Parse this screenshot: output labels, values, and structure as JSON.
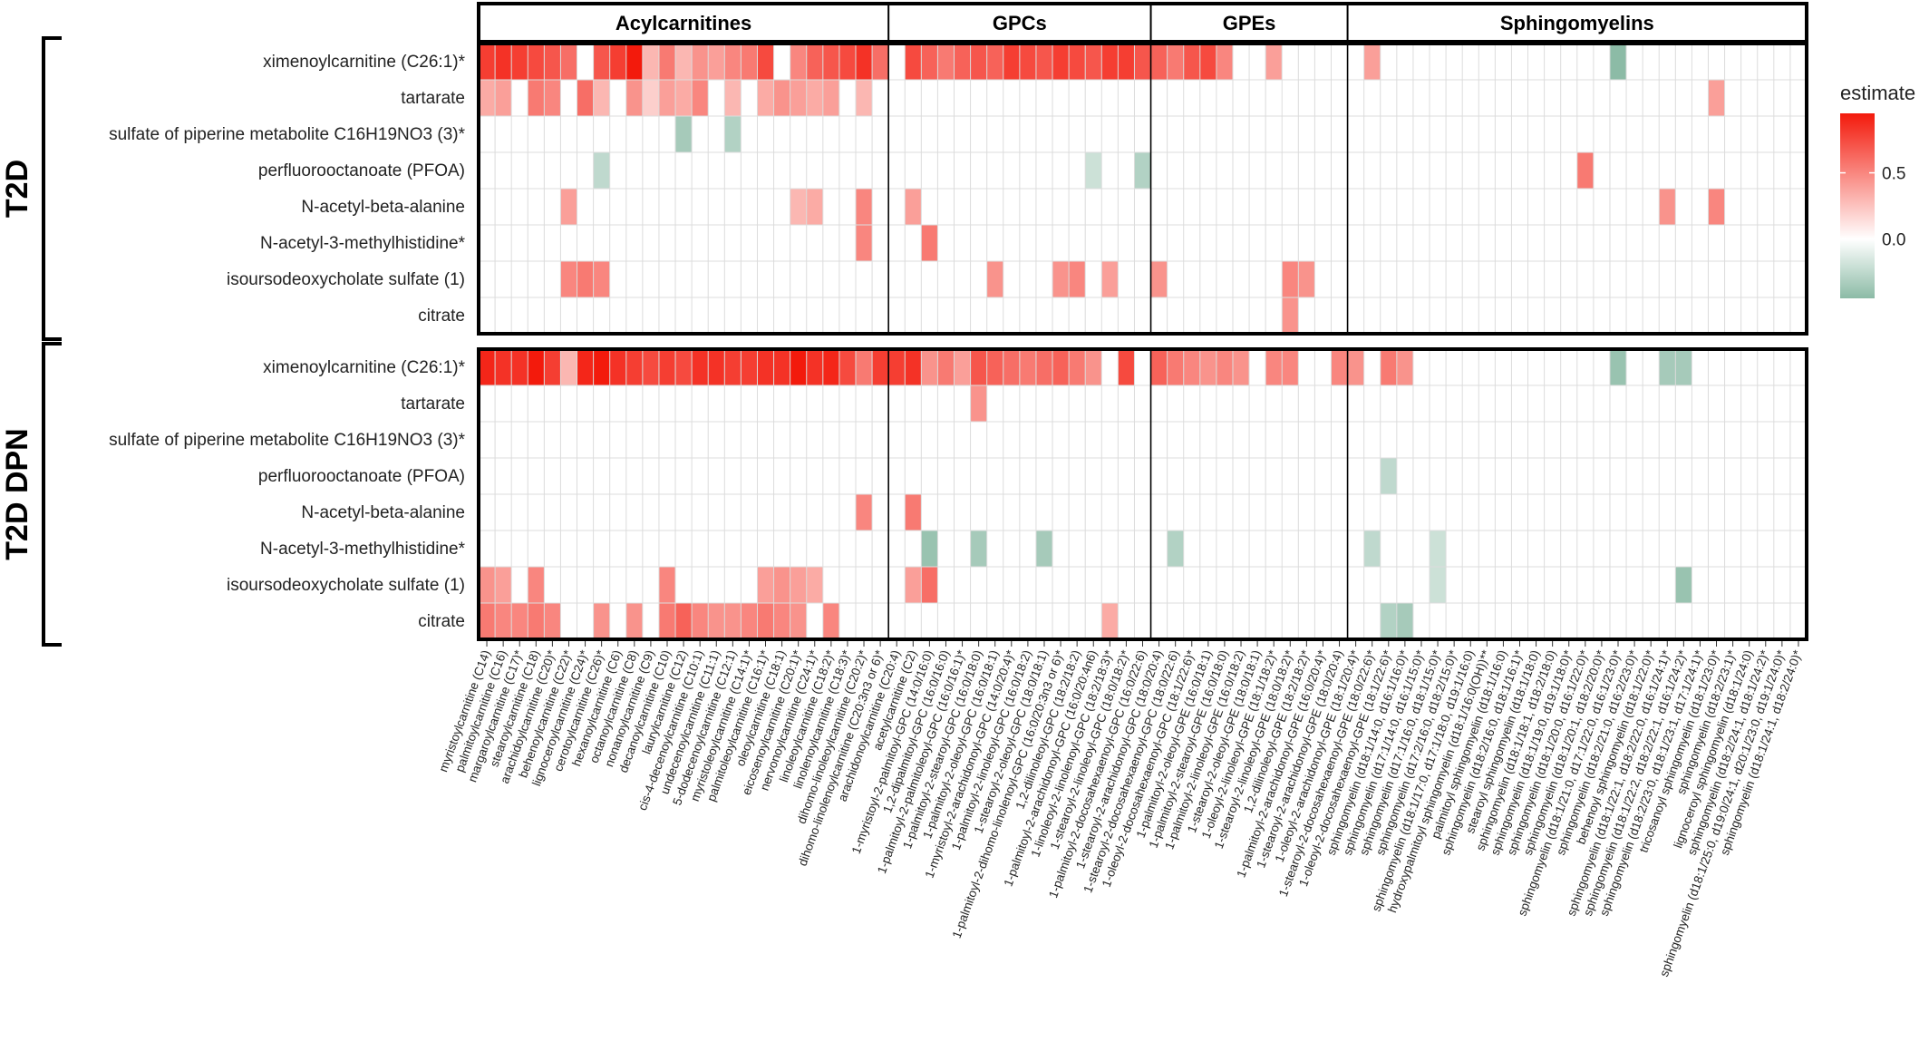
{
  "chart_data": {
    "type": "heatmap",
    "legend": {
      "title": "estimate",
      "ticks": [
        0.5,
        0.0
      ],
      "tick_labels": [
        "0.5",
        "0.0"
      ],
      "range": [
        -0.45,
        0.95
      ],
      "placement": "right"
    },
    "colors": {
      "high": "#f31a0c",
      "mid": "#ffffff",
      "low": "#8cbba6",
      "grid": "#dcdcdc",
      "frame": "#000000"
    },
    "groups": [
      {
        "name": "Acylcarnitines",
        "start": 0,
        "count": 25
      },
      {
        "name": "GPCs",
        "start": 25,
        "count": 16
      },
      {
        "name": "GPEs",
        "start": 41,
        "count": 12
      },
      {
        "name": "Sphingomyelins",
        "start": 53,
        "count": 28
      }
    ],
    "columns": [
      "myristoylcarnitine (C14)",
      "palmitoylcarnitine (C16)",
      "margaroylcarnitine (C17)*",
      "stearoylcarnitine (C18)",
      "arachidoylcarnitine (C20)*",
      "behenoylcarnitine (C22)*",
      "lignoceroylcarnitine (C24)*",
      "cerotoylcarnitine (C26)*",
      "hexanoylcarnitine (C6)",
      "octanoylcarnitine (C8)",
      "nonanoylcarnitine (C9)",
      "decanoylcarnitine (C10)",
      "laurylcarnitine (C12)",
      "cis-4-decenoylcarnitine (C10:1)",
      "undecenoylcarnitine (C11:1)",
      "5-dodecenoylcarnitine (C12:1)",
      "myristoleoylcarnitine (C14:1)*",
      "palmitoleoylcarnitine (C16:1)*",
      "oleoylcarnitine (C18:1)",
      "eicosenoylcarnitine (C20:1)*",
      "nervonoylcarnitine (C24:1)*",
      "linoleoylcarnitine (C18:2)*",
      "linolenoylcarnitine (C18:3)*",
      "dihomo-linoleoylcarnitine (C20:2)*",
      "dihomo-linolenoylcarnitine (C20:3n3 or 6)*",
      "arachidonoylcarnitine (C20:4)",
      "acetylcarnitine (C2)",
      "1-myristoyl-2-palmitoyl-GPC (14:0/16:0)",
      "1,2-dipalmitoyl-GPC (16:0/16:0)",
      "1-palmitoyl-2-palmitoleoyl-GPC (16:0/16:1)*",
      "1-palmitoyl-2-stearoyl-GPC (16:0/18:0)",
      "1-palmitoyl-2-oleoyl-GPC (16:0/18:1)",
      "1-myristoyl-2-arachidonoyl-GPC (14:0/20:4)*",
      "1-palmitoyl-2-linoleoyl-GPC (16:0/18:2)",
      "1-stearoyl-2-oleoyl-GPC (18:0/18:1)",
      "1-palmitoyl-2-dihomo-linolenoyl-GPC (16:0/20:3n3 or 6)*",
      "1,2-dilinoleoyl-GPC (18:2/18:2)",
      "1-palmitoyl-2-arachidonoyl-GPC (16:0/20:4n6)",
      "1-linoleoyl-2-linolenoyl-GPC (18:2/18:3)*",
      "1-stearoyl-2-linoleoyl-GPC (18:0/18:2)*",
      "1-palmitoyl-2-docosahexaenoyl-GPC (16:0/22:6)",
      "1-stearoyl-2-arachidonoyl-GPC (18:0/20:4)",
      "1-stearoyl-2-docosahexaenoyl-GPC (18:0/22:6)",
      "1-oleoyl-2-docosahexaenoyl-GPC (18:1/22:6)*",
      "1-palmitoyl-2-oleoyl-GPE (16:0/18:1)",
      "1-palmitoyl-2-stearoyl-GPE (16:0/18:0)",
      "1-palmitoyl-2-linoleoyl-GPE (16:0/18:2)",
      "1-stearoyl-2-oleoyl-GPE (18:0/18:1)",
      "1-oleoyl-2-linoleoyl-GPE (18:1/18:2)*",
      "1-stearoyl-2-linoleoyl-GPE (18:0/18:2)*",
      "1,2-dilinoleoyl-GPE (18:2/18:2)*",
      "1-palmitoyl-2-arachidonoyl-GPE (16:0/20:4)*",
      "1-stearoyl-2-arachidonoyl-GPE (18:0/20:4)",
      "1-oleoyl-2-arachidonoyl-GPE (18:1/20:4)*",
      "1-stearoyl-2-docosahexaenoyl-GPE (18:0/22:6)*",
      "1-oleoyl-2-docosahexaenoyl-GPE (18:1/22:6)*",
      "sphingomyelin (d18:1/14:0, d16:1/16:0)*",
      "sphingomyelin (d17:1/14:0, d16:1/15:0)*",
      "sphingomyelin (d17:1/16:0, d18:1/15:0)*",
      "sphingomyelin (d17:2/16:0, d18:2/15:0)*",
      "sphingomyelin (d18:1/17:0, d17:1/18:0, d19:1/16:0)",
      "hydroxypalmitoyl sphingomyelin (d18:1/16:0(OH))**",
      "palmitoyl sphingomyelin (d18:1/16:0)",
      "sphingomyelin (d18:2/16:0, d18:1/16:1)*",
      "stearoyl sphingomyelin (d18:1/18:0)",
      "sphingomyelin (d18:1/18:1, d18:2/18:0)",
      "sphingomyelin (d18:1/19:0, d19:1/18:0)*",
      "sphingomyelin (d18:1/20:0, d16:1/22:0)*",
      "sphingomyelin (d18:1/20:1, d18:2/20:0)*",
      "sphingomyelin (d18:1/21:0, d17:1/22:0, d16:1/23:0)*",
      "sphingomyelin (d18:2/21:0, d16:2/23:0)*",
      "behenoyl sphingomyelin (d18:1/22:0)*",
      "sphingomyelin (d18:1/22:1, d18:2/22:0, d16:1/24:1)*",
      "sphingomyelin (d18:1/22:2, d18:2/22:1, d16:1/24:2)*",
      "sphingomyelin (d18:2/23:0, d18:1/23:1, d17:1/24:1)*",
      "tricosanoyl sphingomyelin (d18:1/23:0)*",
      "sphingomyelin (d18:2/23:1)*",
      "lignoceroyl sphingomyelin (d18:1/24:0)",
      "sphingomyelin (d18:2/24:1, d18:1/24:2)*",
      "sphingomyelin (d18:1/25:0, d19:0/24:1, d20:1/23:0, d19:1/24:0)*",
      "sphingomyelin (d18:1/24:1, d18:2/24:0)*"
    ],
    "rows": [
      "ximenoylcarnitine (C26:1)*",
      "tartarate",
      "sulfate of piperine metabolite C16H19NO3 (3)*",
      "perfluorooctanoate (PFOA)",
      "N-acetyl-beta-alanine",
      "N-acetyl-3-methylhistidine*",
      "isoursodeoxycholate sulfate (1)",
      "citrate"
    ],
    "panels": [
      {
        "name": "T2D",
        "cells": [
          [
            0,
            0,
            0.8
          ],
          [
            0,
            1,
            0.85
          ],
          [
            0,
            2,
            0.8
          ],
          [
            0,
            3,
            0.75
          ],
          [
            0,
            4,
            0.7
          ],
          [
            0,
            5,
            0.6
          ],
          [
            0,
            7,
            0.7
          ],
          [
            0,
            8,
            0.8
          ],
          [
            0,
            9,
            0.95
          ],
          [
            0,
            10,
            0.3
          ],
          [
            0,
            11,
            0.55
          ],
          [
            0,
            12,
            0.3
          ],
          [
            0,
            13,
            0.45
          ],
          [
            0,
            14,
            0.4
          ],
          [
            0,
            15,
            0.5
          ],
          [
            0,
            16,
            0.55
          ],
          [
            0,
            17,
            0.75
          ],
          [
            0,
            19,
            0.5
          ],
          [
            0,
            20,
            0.65
          ],
          [
            0,
            21,
            0.7
          ],
          [
            0,
            22,
            0.75
          ],
          [
            0,
            23,
            0.85
          ],
          [
            0,
            24,
            0.6
          ],
          [
            0,
            26,
            0.75
          ],
          [
            0,
            27,
            0.65
          ],
          [
            0,
            28,
            0.55
          ],
          [
            0,
            29,
            0.65
          ],
          [
            0,
            30,
            0.7
          ],
          [
            0,
            31,
            0.65
          ],
          [
            0,
            32,
            0.8
          ],
          [
            0,
            33,
            0.75
          ],
          [
            0,
            34,
            0.7
          ],
          [
            0,
            35,
            0.8
          ],
          [
            0,
            36,
            0.75
          ],
          [
            0,
            37,
            0.7
          ],
          [
            0,
            38,
            0.8
          ],
          [
            0,
            39,
            0.8
          ],
          [
            0,
            40,
            0.7
          ],
          [
            0,
            41,
            0.65
          ],
          [
            0,
            42,
            0.55
          ],
          [
            0,
            43,
            0.7
          ],
          [
            0,
            44,
            0.75
          ],
          [
            0,
            45,
            0.5
          ],
          [
            0,
            48,
            0.4
          ],
          [
            0,
            54,
            0.4
          ],
          [
            0,
            69,
            -0.45
          ],
          [
            1,
            0,
            0.35
          ],
          [
            1,
            1,
            0.4
          ],
          [
            1,
            3,
            0.55
          ],
          [
            1,
            4,
            0.5
          ],
          [
            1,
            6,
            0.6
          ],
          [
            1,
            7,
            0.3
          ],
          [
            1,
            9,
            0.45
          ],
          [
            1,
            10,
            0.2
          ],
          [
            1,
            11,
            0.4
          ],
          [
            1,
            12,
            0.35
          ],
          [
            1,
            13,
            0.5
          ],
          [
            1,
            15,
            0.3
          ],
          [
            1,
            17,
            0.35
          ],
          [
            1,
            18,
            0.45
          ],
          [
            1,
            19,
            0.4
          ],
          [
            1,
            20,
            0.35
          ],
          [
            1,
            21,
            0.4
          ],
          [
            1,
            23,
            0.3
          ],
          [
            1,
            75,
            0.4
          ],
          [
            2,
            12,
            -0.35
          ],
          [
            2,
            15,
            -0.3
          ],
          [
            3,
            7,
            -0.25
          ],
          [
            3,
            37,
            -0.2
          ],
          [
            3,
            40,
            -0.3
          ],
          [
            3,
            67,
            0.55
          ],
          [
            4,
            5,
            0.4
          ],
          [
            4,
            19,
            0.3
          ],
          [
            4,
            20,
            0.35
          ],
          [
            4,
            23,
            0.5
          ],
          [
            4,
            26,
            0.4
          ],
          [
            4,
            72,
            0.45
          ],
          [
            4,
            75,
            0.5
          ],
          [
            5,
            23,
            0.5
          ],
          [
            5,
            27,
            0.55
          ],
          [
            6,
            5,
            0.5
          ],
          [
            6,
            6,
            0.55
          ],
          [
            6,
            7,
            0.5
          ],
          [
            6,
            31,
            0.45
          ],
          [
            6,
            35,
            0.45
          ],
          [
            6,
            36,
            0.5
          ],
          [
            6,
            38,
            0.4
          ],
          [
            6,
            41,
            0.45
          ],
          [
            6,
            49,
            0.5
          ],
          [
            6,
            50,
            0.45
          ],
          [
            7,
            49,
            0.45
          ]
        ]
      },
      {
        "name": "T2D DPN",
        "cells": [
          [
            0,
            0,
            0.9
          ],
          [
            0,
            1,
            0.85
          ],
          [
            0,
            2,
            0.85
          ],
          [
            0,
            3,
            0.95
          ],
          [
            0,
            4,
            0.8
          ],
          [
            0,
            5,
            0.3
          ],
          [
            0,
            6,
            0.9
          ],
          [
            0,
            7,
            0.95
          ],
          [
            0,
            8,
            0.85
          ],
          [
            0,
            9,
            0.8
          ],
          [
            0,
            10,
            0.75
          ],
          [
            0,
            11,
            0.8
          ],
          [
            0,
            12,
            0.75
          ],
          [
            0,
            13,
            0.85
          ],
          [
            0,
            14,
            0.85
          ],
          [
            0,
            15,
            0.8
          ],
          [
            0,
            16,
            0.8
          ],
          [
            0,
            17,
            0.85
          ],
          [
            0,
            18,
            0.85
          ],
          [
            0,
            19,
            0.95
          ],
          [
            0,
            20,
            0.85
          ],
          [
            0,
            21,
            0.9
          ],
          [
            0,
            22,
            0.75
          ],
          [
            0,
            23,
            0.55
          ],
          [
            0,
            24,
            0.8
          ],
          [
            0,
            25,
            0.8
          ],
          [
            0,
            26,
            0.85
          ],
          [
            0,
            27,
            0.45
          ],
          [
            0,
            28,
            0.55
          ],
          [
            0,
            29,
            0.4
          ],
          [
            0,
            30,
            0.7
          ],
          [
            0,
            31,
            0.65
          ],
          [
            0,
            32,
            0.6
          ],
          [
            0,
            33,
            0.55
          ],
          [
            0,
            34,
            0.6
          ],
          [
            0,
            35,
            0.65
          ],
          [
            0,
            36,
            0.55
          ],
          [
            0,
            37,
            0.45
          ],
          [
            0,
            39,
            0.75
          ],
          [
            0,
            41,
            0.65
          ],
          [
            0,
            42,
            0.55
          ],
          [
            0,
            43,
            0.5
          ],
          [
            0,
            44,
            0.45
          ],
          [
            0,
            45,
            0.5
          ],
          [
            0,
            46,
            0.45
          ],
          [
            0,
            48,
            0.5
          ],
          [
            0,
            49,
            0.5
          ],
          [
            0,
            52,
            0.5
          ],
          [
            0,
            53,
            0.45
          ],
          [
            0,
            55,
            0.55
          ],
          [
            0,
            56,
            0.45
          ],
          [
            0,
            69,
            -0.4
          ],
          [
            0,
            72,
            -0.35
          ],
          [
            0,
            73,
            -0.35
          ],
          [
            1,
            30,
            0.45
          ],
          [
            3,
            55,
            -0.25
          ],
          [
            4,
            23,
            0.5
          ],
          [
            4,
            26,
            0.55
          ],
          [
            5,
            27,
            -0.4
          ],
          [
            5,
            30,
            -0.35
          ],
          [
            5,
            34,
            -0.35
          ],
          [
            5,
            42,
            -0.3
          ],
          [
            5,
            54,
            -0.25
          ],
          [
            5,
            58,
            -0.2
          ],
          [
            6,
            0,
            0.45
          ],
          [
            6,
            1,
            0.4
          ],
          [
            6,
            3,
            0.5
          ],
          [
            6,
            11,
            0.5
          ],
          [
            6,
            17,
            0.4
          ],
          [
            6,
            18,
            0.45
          ],
          [
            6,
            19,
            0.4
          ],
          [
            6,
            20,
            0.35
          ],
          [
            6,
            26,
            0.4
          ],
          [
            6,
            27,
            0.6
          ],
          [
            6,
            58,
            -0.2
          ],
          [
            6,
            73,
            -0.4
          ],
          [
            7,
            0,
            0.55
          ],
          [
            7,
            1,
            0.5
          ],
          [
            7,
            2,
            0.5
          ],
          [
            7,
            3,
            0.55
          ],
          [
            7,
            4,
            0.5
          ],
          [
            7,
            7,
            0.45
          ],
          [
            7,
            9,
            0.45
          ],
          [
            7,
            11,
            0.55
          ],
          [
            7,
            12,
            0.65
          ],
          [
            7,
            13,
            0.5
          ],
          [
            7,
            14,
            0.45
          ],
          [
            7,
            15,
            0.45
          ],
          [
            7,
            16,
            0.5
          ],
          [
            7,
            17,
            0.55
          ],
          [
            7,
            18,
            0.5
          ],
          [
            7,
            19,
            0.45
          ],
          [
            7,
            21,
            0.5
          ],
          [
            7,
            38,
            0.35
          ],
          [
            7,
            55,
            -0.3
          ],
          [
            7,
            56,
            -0.35
          ]
        ]
      }
    ]
  }
}
